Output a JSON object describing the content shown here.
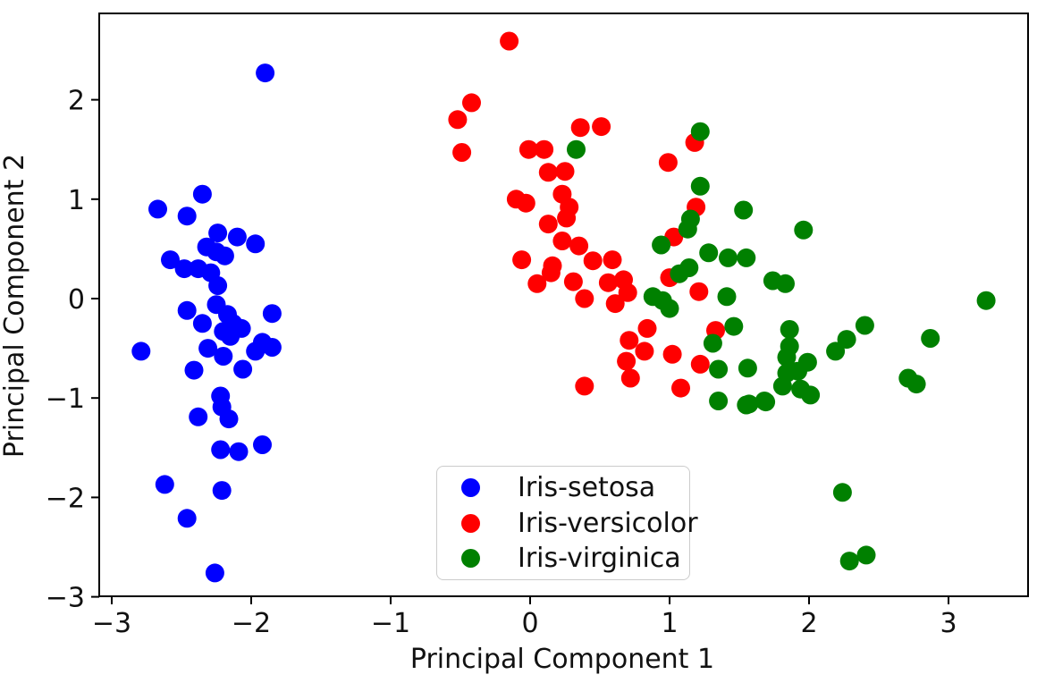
{
  "chart_data": {
    "type": "scatter",
    "title": "",
    "xlabel": "Principal Component 1",
    "ylabel": "Principal Component 2",
    "xticks": [
      -3,
      -2,
      -1,
      0,
      1,
      2,
      3
    ],
    "yticks": [
      2,
      1,
      0,
      -1,
      -2,
      -3
    ],
    "xlim": [
      -3.09,
      3.57
    ],
    "ylim": [
      -3.0,
      2.87
    ],
    "grid": false,
    "background_color": "#ffffff",
    "spine_color": "#000000",
    "text_color": "#111111",
    "legend": {
      "position": "lower center",
      "entries": [
        "Iris-setosa",
        "Iris-versicolor",
        "Iris-virginica"
      ]
    },
    "series": [
      {
        "name": "Iris-setosa",
        "color": "#0000ff",
        "points": [
          [
            -1.9,
            2.27
          ],
          [
            -2.35,
            1.05
          ],
          [
            -2.67,
            0.9
          ],
          [
            -2.46,
            0.83
          ],
          [
            -2.24,
            0.66
          ],
          [
            -2.1,
            0.62
          ],
          [
            -1.97,
            0.55
          ],
          [
            -2.32,
            0.52
          ],
          [
            -2.25,
            0.47
          ],
          [
            -2.19,
            0.43
          ],
          [
            -2.58,
            0.39
          ],
          [
            -2.48,
            0.3
          ],
          [
            -2.38,
            0.3
          ],
          [
            -2.29,
            0.26
          ],
          [
            -2.24,
            0.13
          ],
          [
            -2.46,
            -0.12
          ],
          [
            -2.25,
            -0.06
          ],
          [
            -2.17,
            -0.16
          ],
          [
            -1.85,
            -0.15
          ],
          [
            -2.35,
            -0.25
          ],
          [
            -2.13,
            -0.25
          ],
          [
            -2.07,
            -0.3
          ],
          [
            -2.2,
            -0.33
          ],
          [
            -2.15,
            -0.38
          ],
          [
            -2.79,
            -0.53
          ],
          [
            -2.31,
            -0.5
          ],
          [
            -2.2,
            -0.58
          ],
          [
            -1.97,
            -0.53
          ],
          [
            -1.85,
            -0.49
          ],
          [
            -1.92,
            -0.44
          ],
          [
            -2.41,
            -0.72
          ],
          [
            -2.06,
            -0.71
          ],
          [
            -2.22,
            -0.98
          ],
          [
            -2.21,
            -1.09
          ],
          [
            -2.38,
            -1.19
          ],
          [
            -2.16,
            -1.21
          ],
          [
            -2.22,
            -1.52
          ],
          [
            -2.09,
            -1.54
          ],
          [
            -1.92,
            -1.47
          ],
          [
            -2.62,
            -1.87
          ],
          [
            -2.21,
            -1.93
          ],
          [
            -2.46,
            -2.21
          ],
          [
            -2.26,
            -2.76
          ]
        ]
      },
      {
        "name": "Iris-versicolor",
        "color": "#ff0000",
        "points": [
          [
            -0.15,
            2.59
          ],
          [
            -0.42,
            1.97
          ],
          [
            -0.52,
            1.8
          ],
          [
            -0.49,
            1.47
          ],
          [
            0.36,
            1.72
          ],
          [
            0.51,
            1.73
          ],
          [
            -0.01,
            1.5
          ],
          [
            0.1,
            1.5
          ],
          [
            0.25,
            1.28
          ],
          [
            0.13,
            1.27
          ],
          [
            0.23,
            1.05
          ],
          [
            -0.1,
            1.0
          ],
          [
            -0.03,
            0.96
          ],
          [
            0.28,
            0.92
          ],
          [
            0.26,
            0.81
          ],
          [
            0.13,
            0.75
          ],
          [
            0.99,
            1.37
          ],
          [
            1.18,
            1.57
          ],
          [
            1.19,
            0.92
          ],
          [
            1.03,
            0.62
          ],
          [
            0.23,
            0.58
          ],
          [
            0.35,
            0.53
          ],
          [
            -0.06,
            0.39
          ],
          [
            0.45,
            0.38
          ],
          [
            0.59,
            0.39
          ],
          [
            0.16,
            0.33
          ],
          [
            0.15,
            0.26
          ],
          [
            0.05,
            0.15
          ],
          [
            0.31,
            0.17
          ],
          [
            0.39,
            0.0
          ],
          [
            0.56,
            0.16
          ],
          [
            0.67,
            0.19
          ],
          [
            0.7,
            0.06
          ],
          [
            0.61,
            -0.05
          ],
          [
            1.0,
            0.21
          ],
          [
            1.21,
            0.07
          ],
          [
            0.84,
            -0.3
          ],
          [
            0.71,
            -0.42
          ],
          [
            0.82,
            -0.53
          ],
          [
            0.69,
            -0.63
          ],
          [
            1.02,
            -0.56
          ],
          [
            0.72,
            -0.8
          ],
          [
            0.39,
            -0.88
          ],
          [
            1.08,
            -0.9
          ],
          [
            1.33,
            -0.32
          ],
          [
            1.22,
            -0.66
          ]
        ]
      },
      {
        "name": "Iris-virginica",
        "color": "#008000",
        "points": [
          [
            0.33,
            1.5
          ],
          [
            1.22,
            1.68
          ],
          [
            1.22,
            1.13
          ],
          [
            1.53,
            0.89
          ],
          [
            0.94,
            0.54
          ],
          [
            1.13,
            0.7
          ],
          [
            1.15,
            0.8
          ],
          [
            1.07,
            0.25
          ],
          [
            1.14,
            0.31
          ],
          [
            0.88,
            0.02
          ],
          [
            0.95,
            -0.02
          ],
          [
            1.0,
            -0.1
          ],
          [
            1.41,
            0.02
          ],
          [
            1.28,
            0.46
          ],
          [
            1.42,
            0.41
          ],
          [
            1.55,
            0.41
          ],
          [
            1.96,
            0.69
          ],
          [
            1.74,
            0.18
          ],
          [
            1.83,
            0.15
          ],
          [
            3.27,
            -0.02
          ],
          [
            1.46,
            -0.28
          ],
          [
            1.31,
            -0.45
          ],
          [
            1.35,
            -0.71
          ],
          [
            1.56,
            -0.7
          ],
          [
            1.35,
            -1.03
          ],
          [
            1.55,
            -1.07
          ],
          [
            1.68,
            -1.03
          ],
          [
            1.86,
            -0.31
          ],
          [
            1.86,
            -0.48
          ],
          [
            2.4,
            -0.27
          ],
          [
            2.27,
            -0.41
          ],
          [
            2.19,
            -0.53
          ],
          [
            2.87,
            -0.4
          ],
          [
            1.84,
            -0.59
          ],
          [
            1.84,
            -0.75
          ],
          [
            1.92,
            -0.73
          ],
          [
            1.99,
            -0.64
          ],
          [
            1.81,
            -0.88
          ],
          [
            1.69,
            -1.04
          ],
          [
            1.57,
            -1.06
          ],
          [
            1.94,
            -0.91
          ],
          [
            2.01,
            -0.97
          ],
          [
            2.24,
            -1.95
          ],
          [
            2.29,
            -2.64
          ],
          [
            2.41,
            -2.58
          ],
          [
            2.71,
            -0.8
          ],
          [
            2.77,
            -0.86
          ]
        ]
      }
    ]
  }
}
